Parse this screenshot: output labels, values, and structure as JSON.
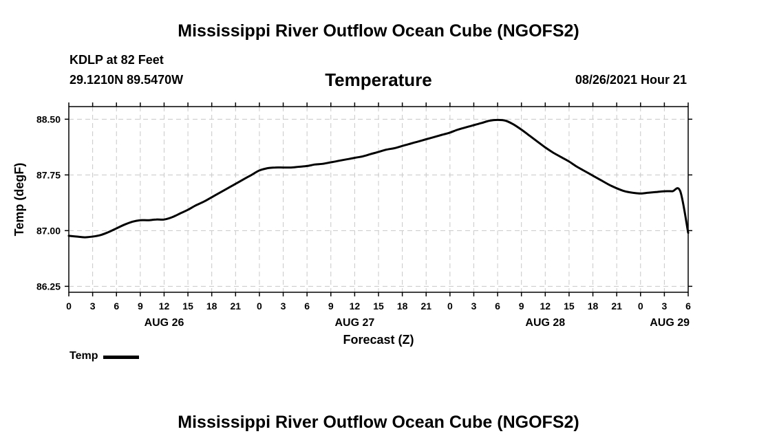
{
  "header": {
    "title": "Mississippi River Outflow Ocean Cube (NGOFS2)",
    "station": "KDLP at 82 Feet",
    "coords": "29.1210N  89.5470W",
    "variable": "Temperature",
    "run_time": "08/26/2021 Hour 21"
  },
  "footer": {
    "title": "Mississippi River Outflow Ocean Cube (NGOFS2)"
  },
  "legend": {
    "label": "Temp",
    "color": "#000000"
  },
  "chart_data": {
    "type": "line",
    "title": "Temperature",
    "xlabel": "Forecast (Z)",
    "ylabel": "Temp (degF)",
    "xlim": [
      0,
      78
    ],
    "ylim": [
      86.17,
      88.67
    ],
    "y_ticks": [
      86.25,
      87.0,
      87.75,
      88.5
    ],
    "y_tick_labels": [
      "86.25",
      "87.00",
      "87.75",
      "88.50"
    ],
    "x_ticks": [
      0,
      3,
      6,
      9,
      12,
      15,
      18,
      21,
      24,
      27,
      30,
      33,
      36,
      39,
      42,
      45,
      48,
      51,
      54,
      57,
      60,
      63,
      66,
      69,
      72,
      75,
      78
    ],
    "x_tick_labels": [
      "0",
      "3",
      "6",
      "9",
      "12",
      "15",
      "18",
      "21",
      "0",
      "3",
      "6",
      "9",
      "12",
      "15",
      "18",
      "21",
      "0",
      "3",
      "6",
      "9",
      "12",
      "15",
      "18",
      "21",
      "0",
      "3",
      "6"
    ],
    "date_labels": [
      {
        "x": 12,
        "label": "AUG 26"
      },
      {
        "x": 36,
        "label": "AUG 27"
      },
      {
        "x": 60,
        "label": "AUG 28"
      },
      {
        "x": 78,
        "label": "AUG 29"
      }
    ],
    "grid": true,
    "legend_position": "bottom-left",
    "series": [
      {
        "name": "Temp",
        "color": "#000000",
        "x": [
          0,
          1,
          2,
          3,
          4,
          5,
          6,
          7,
          8,
          9,
          10,
          11,
          12,
          13,
          14,
          15,
          16,
          17,
          18,
          19,
          20,
          21,
          22,
          23,
          24,
          25,
          26,
          27,
          28,
          29,
          30,
          31,
          32,
          33,
          34,
          35,
          36,
          37,
          38,
          39,
          40,
          41,
          42,
          43,
          44,
          45,
          46,
          47,
          48,
          49,
          50,
          51,
          52,
          53,
          54,
          55,
          56,
          57,
          58,
          59,
          60,
          61,
          62,
          63,
          64,
          65,
          66,
          67,
          68,
          69,
          70,
          71,
          72,
          73,
          74,
          75,
          76,
          77,
          78
        ],
        "values": [
          86.93,
          86.92,
          86.91,
          86.92,
          86.94,
          86.98,
          87.03,
          87.08,
          87.12,
          87.14,
          87.14,
          87.15,
          87.15,
          87.18,
          87.23,
          87.28,
          87.34,
          87.39,
          87.45,
          87.51,
          87.57,
          87.63,
          87.69,
          87.75,
          87.81,
          87.84,
          87.85,
          87.85,
          87.85,
          87.86,
          87.87,
          87.89,
          87.9,
          87.92,
          87.94,
          87.96,
          87.98,
          88.0,
          88.03,
          88.06,
          88.09,
          88.11,
          88.14,
          88.17,
          88.2,
          88.23,
          88.26,
          88.29,
          88.32,
          88.36,
          88.39,
          88.42,
          88.45,
          88.48,
          88.49,
          88.48,
          88.43,
          88.36,
          88.28,
          88.2,
          88.12,
          88.05,
          87.99,
          87.93,
          87.86,
          87.8,
          87.74,
          87.68,
          87.62,
          87.57,
          87.53,
          87.51,
          87.5,
          87.51,
          87.52,
          87.53,
          87.53,
          87.53,
          86.97
        ]
      }
    ]
  }
}
